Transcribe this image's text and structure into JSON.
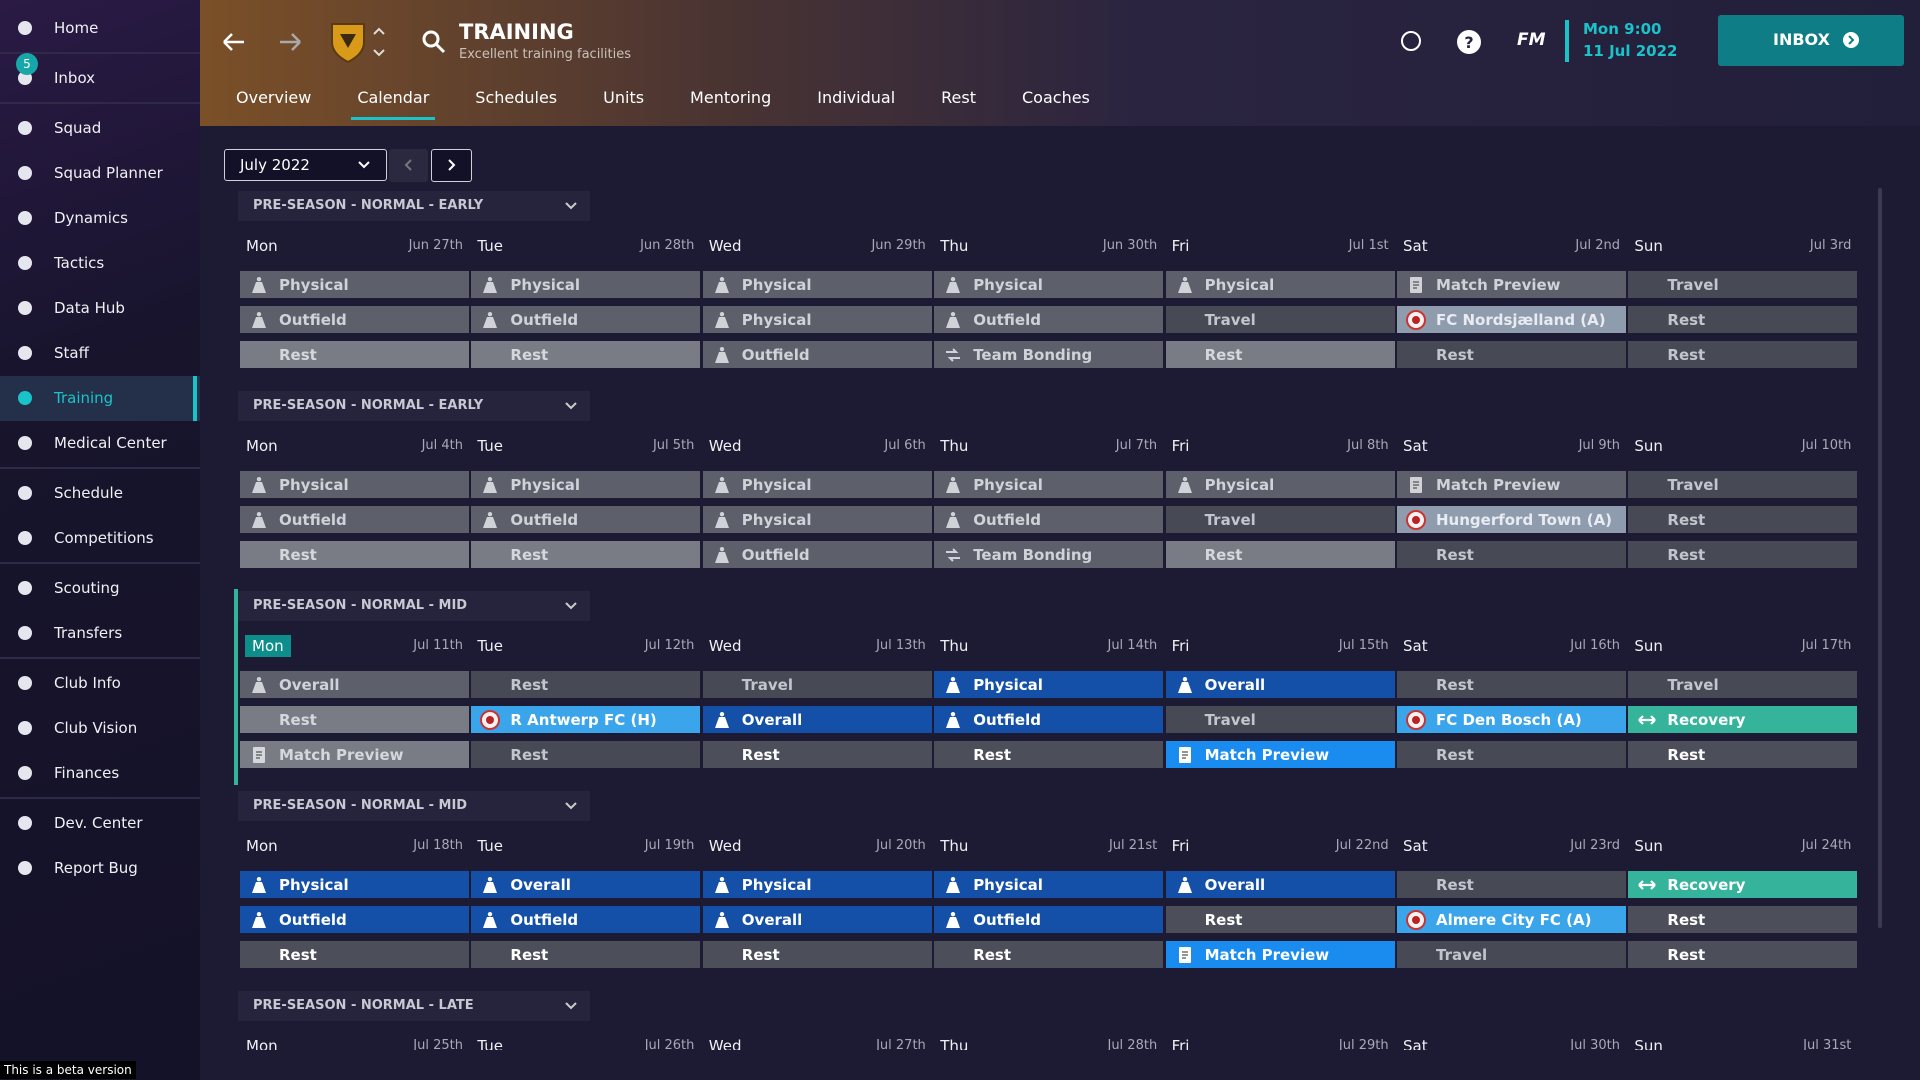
{
  "sidebar": {
    "groups": [
      [
        {
          "label": "Home"
        }
      ],
      [
        {
          "label": "Inbox",
          "badge": "5"
        }
      ],
      [
        {
          "label": "Squad"
        },
        {
          "label": "Squad Planner"
        },
        {
          "label": "Dynamics"
        },
        {
          "label": "Tactics"
        },
        {
          "label": "Data Hub"
        },
        {
          "label": "Staff"
        },
        {
          "label": "Training",
          "active": true
        },
        {
          "label": "Medical Center"
        }
      ],
      [
        {
          "label": "Schedule"
        },
        {
          "label": "Competitions"
        }
      ],
      [
        {
          "label": "Scouting"
        },
        {
          "label": "Transfers"
        }
      ],
      [
        {
          "label": "Club Info"
        },
        {
          "label": "Club Vision"
        },
        {
          "label": "Finances"
        }
      ],
      [
        {
          "label": "Dev. Center"
        },
        {
          "label": "Report Bug"
        }
      ]
    ],
    "beta": "This is a beta version"
  },
  "header": {
    "title": "TRAINING",
    "subtitle": "Excellent training facilities",
    "brand": "FM",
    "time": "Mon 9:00",
    "date": "11 Jul 2022",
    "inbox": "INBOX"
  },
  "tabs": {
    "items": [
      "Overview",
      "Calendar",
      "Schedules",
      "Units",
      "Mentoring",
      "Individual",
      "Rest",
      "Coaches"
    ],
    "active": "Calendar"
  },
  "month": "July 2022",
  "weeks": [
    {
      "phase": "PRE-SEASON - NORMAL - EARLY",
      "days": [
        [
          "Mon",
          "Jun 27th"
        ],
        [
          "Tue",
          "Jun 28th"
        ],
        [
          "Wed",
          "Jun 29th"
        ],
        [
          "Thu",
          "Jun 30th"
        ],
        [
          "Fri",
          "Jul 1st"
        ],
        [
          "Sat",
          "Jul 2nd"
        ],
        [
          "Sun",
          "Jul 3rd"
        ]
      ],
      "rows": [
        [
          [
            "Physical",
            "g1",
            "person"
          ],
          [
            "Physical",
            "g1",
            "person"
          ],
          [
            "Physical",
            "g1",
            "person"
          ],
          [
            "Physical",
            "g1",
            "person"
          ],
          [
            "Physical",
            "g1",
            "person"
          ],
          [
            "Match Preview",
            "g1",
            "doc"
          ],
          [
            "Travel",
            "g3",
            null
          ]
        ],
        [
          [
            "Outfield",
            "g1",
            "person"
          ],
          [
            "Outfield",
            "g1",
            "person"
          ],
          [
            "Physical",
            "g1",
            "person"
          ],
          [
            "Outfield",
            "g1",
            "person"
          ],
          [
            "Travel",
            "g3",
            null
          ],
          [
            "FC Nordsjælland (A)",
            "m",
            "club"
          ],
          [
            "Rest",
            "g3",
            null
          ]
        ],
        [
          [
            "Rest",
            "g2",
            null
          ],
          [
            "Rest",
            "g2",
            null
          ],
          [
            "Outfield",
            "g1",
            "person"
          ],
          [
            "Team Bonding",
            "g1",
            "bond"
          ],
          [
            "Rest",
            "g2",
            null
          ],
          [
            "Rest",
            "g3",
            null
          ],
          [
            "Rest",
            "g3",
            null
          ]
        ]
      ]
    },
    {
      "phase": "PRE-SEASON - NORMAL - EARLY",
      "days": [
        [
          "Mon",
          "Jul 4th"
        ],
        [
          "Tue",
          "Jul 5th"
        ],
        [
          "Wed",
          "Jul 6th"
        ],
        [
          "Thu",
          "Jul 7th"
        ],
        [
          "Fri",
          "Jul 8th"
        ],
        [
          "Sat",
          "Jul 9th"
        ],
        [
          "Sun",
          "Jul 10th"
        ]
      ],
      "rows": [
        [
          [
            "Physical",
            "g1",
            "person"
          ],
          [
            "Physical",
            "g1",
            "person"
          ],
          [
            "Physical",
            "g1",
            "person"
          ],
          [
            "Physical",
            "g1",
            "person"
          ],
          [
            "Physical",
            "g1",
            "person"
          ],
          [
            "Match Preview",
            "g1",
            "doc"
          ],
          [
            "Travel",
            "g3",
            null
          ]
        ],
        [
          [
            "Outfield",
            "g1",
            "person"
          ],
          [
            "Outfield",
            "g1",
            "person"
          ],
          [
            "Physical",
            "g1",
            "person"
          ],
          [
            "Outfield",
            "g1",
            "person"
          ],
          [
            "Travel",
            "g3",
            null
          ],
          [
            "Hungerford Town (A)",
            "m",
            "club"
          ],
          [
            "Rest",
            "g3",
            null
          ]
        ],
        [
          [
            "Rest",
            "g2",
            null
          ],
          [
            "Rest",
            "g2",
            null
          ],
          [
            "Outfield",
            "g1",
            "person"
          ],
          [
            "Team Bonding",
            "g1",
            "bond"
          ],
          [
            "Rest",
            "g2",
            null
          ],
          [
            "Rest",
            "g3",
            null
          ],
          [
            "Rest",
            "g3",
            null
          ]
        ]
      ]
    },
    {
      "phase": "PRE-SEASON - NORMAL - MID",
      "current": true,
      "today": "Mon",
      "days": [
        [
          "Mon",
          "Jul 11th"
        ],
        [
          "Tue",
          "Jul 12th"
        ],
        [
          "Wed",
          "Jul 13th"
        ],
        [
          "Thu",
          "Jul 14th"
        ],
        [
          "Fri",
          "Jul 15th"
        ],
        [
          "Sat",
          "Jul 16th"
        ],
        [
          "Sun",
          "Jul 17th"
        ]
      ],
      "rows": [
        [
          [
            "Overall",
            "g1",
            "person"
          ],
          [
            "Rest",
            "g3",
            null
          ],
          [
            "Travel",
            "g3",
            null
          ],
          [
            "Physical",
            "blue",
            "person"
          ],
          [
            "Overall",
            "blue",
            "person"
          ],
          [
            "Rest",
            "g3",
            null
          ],
          [
            "Travel",
            "g3",
            null
          ]
        ],
        [
          [
            "Rest",
            "g2",
            null
          ],
          [
            "R Antwerp FC (H)",
            "lb",
            "club"
          ],
          [
            "Overall",
            "blue",
            "person"
          ],
          [
            "Outfield",
            "blue",
            "person"
          ],
          [
            "Travel",
            "g3",
            null
          ],
          [
            "FC Den Bosch (A)",
            "lb",
            "club"
          ],
          [
            "Recovery",
            "teal",
            "rec"
          ]
        ],
        [
          [
            "Match Preview",
            "g2",
            "doc"
          ],
          [
            "Rest",
            "g3",
            null
          ],
          [
            "Rest",
            "g4",
            null
          ],
          [
            "Rest",
            "g4",
            null
          ],
          [
            "Match Preview",
            "bright",
            "doc"
          ],
          [
            "Rest",
            "g3",
            null
          ],
          [
            "Rest",
            "g4",
            null
          ]
        ]
      ]
    },
    {
      "phase": "PRE-SEASON - NORMAL - MID",
      "days": [
        [
          "Mon",
          "Jul 18th"
        ],
        [
          "Tue",
          "Jul 19th"
        ],
        [
          "Wed",
          "Jul 20th"
        ],
        [
          "Thu",
          "Jul 21st"
        ],
        [
          "Fri",
          "Jul 22nd"
        ],
        [
          "Sat",
          "Jul 23rd"
        ],
        [
          "Sun",
          "Jul 24th"
        ]
      ],
      "rows": [
        [
          [
            "Physical",
            "blue",
            "person"
          ],
          [
            "Overall",
            "blue",
            "person"
          ],
          [
            "Physical",
            "blue",
            "person"
          ],
          [
            "Physical",
            "blue",
            "person"
          ],
          [
            "Overall",
            "blue",
            "person"
          ],
          [
            "Rest",
            "g3",
            null
          ],
          [
            "Recovery",
            "teal",
            "rec"
          ]
        ],
        [
          [
            "Outfield",
            "blue",
            "person"
          ],
          [
            "Outfield",
            "blue",
            "person"
          ],
          [
            "Overall",
            "blue",
            "person"
          ],
          [
            "Outfield",
            "blue",
            "person"
          ],
          [
            "Rest",
            "g4",
            null
          ],
          [
            "Almere City FC (A)",
            "lb",
            "club"
          ],
          [
            "Rest",
            "g4",
            null
          ]
        ],
        [
          [
            "Rest",
            "g4",
            null
          ],
          [
            "Rest",
            "g4",
            null
          ],
          [
            "Rest",
            "g4",
            null
          ],
          [
            "Rest",
            "g4",
            null
          ],
          [
            "Match Preview",
            "bright",
            "doc"
          ],
          [
            "Travel",
            "g3",
            null
          ],
          [
            "Rest",
            "g4",
            null
          ]
        ]
      ]
    },
    {
      "phase": "PRE-SEASON - NORMAL - LATE",
      "days": [
        [
          "Mon",
          "Jul 25th"
        ],
        [
          "Tue",
          "Jul 26th"
        ],
        [
          "Wed",
          "Jul 27th"
        ],
        [
          "Thu",
          "Jul 28th"
        ],
        [
          "Fri",
          "Jul 29th"
        ],
        [
          "Sat",
          "Jul 30th"
        ],
        [
          "Sun",
          "Jul 31st"
        ]
      ],
      "rows": []
    }
  ]
}
